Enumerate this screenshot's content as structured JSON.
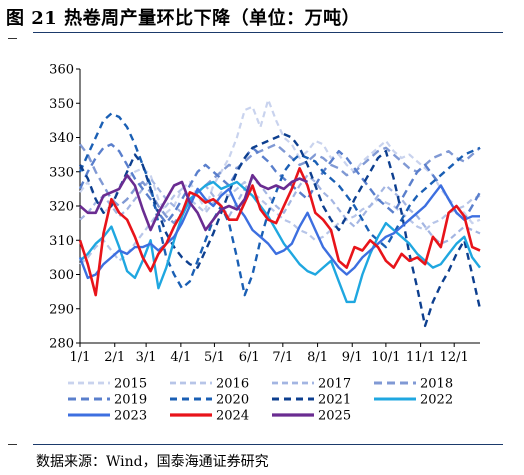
{
  "figure": {
    "title": "图 21  热卷周产量环比下降（单位：万吨）",
    "source": "数据来源：Wind，国泰海通证券研究"
  },
  "chart_data": {
    "type": "line",
    "title": "图 21  热卷周产量环比下降（单位：万吨）",
    "ylabel": "",
    "xlabel": "",
    "x_ticks": [
      "1/1",
      "2/1",
      "3/1",
      "4/1",
      "5/1",
      "6/1",
      "7/1",
      "8/1",
      "9/1",
      "10/1",
      "11/1",
      "12/1"
    ],
    "ylim": [
      280,
      360
    ],
    "y_ticks": [
      280,
      290,
      300,
      310,
      320,
      330,
      340,
      350,
      360
    ],
    "grid": false,
    "legend_position": "bottom",
    "series": [
      {
        "name": "2015",
        "color": "#c9d3ee",
        "dash": "6,4",
        "width": 2.2,
        "x": [
          1,
          2,
          3,
          4,
          5,
          6,
          7,
          8,
          9,
          10,
          11,
          12,
          13,
          14,
          15,
          16,
          17,
          18,
          19,
          20,
          21,
          22,
          23,
          24,
          25,
          26,
          27,
          28,
          29,
          30,
          31,
          32,
          33,
          34,
          35,
          36,
          37,
          38,
          39,
          40,
          41,
          42,
          43,
          44,
          45,
          46,
          47,
          48,
          49,
          50,
          51,
          52
        ],
        "values": [
          324,
          327,
          322,
          318,
          320,
          326,
          328,
          330,
          331,
          329,
          322,
          318,
          320,
          325,
          327,
          323,
          319,
          326,
          330,
          334,
          340,
          348,
          349,
          343,
          351,
          345,
          340,
          338,
          334,
          336,
          339,
          338,
          334,
          335,
          332,
          330,
          333,
          335,
          337,
          339,
          336,
          334,
          335,
          333,
          331,
          329,
          325,
          322,
          320,
          318,
          315,
          316
        ]
      },
      {
        "name": "2016",
        "color": "#b7c5e8",
        "dash": "6,4",
        "width": 2.2,
        "x": [
          1,
          2,
          3,
          4,
          5,
          6,
          7,
          8,
          9,
          10,
          11,
          12,
          13,
          14,
          15,
          16,
          17,
          18,
          19,
          20,
          21,
          22,
          23,
          24,
          25,
          26,
          27,
          28,
          29,
          30,
          31,
          32,
          33,
          34,
          35,
          36,
          37,
          38,
          39,
          40,
          41,
          42,
          43,
          44,
          45,
          46,
          47,
          48,
          49,
          50,
          51,
          52
        ],
        "values": [
          303,
          305,
          308,
          310,
          307,
          304,
          306,
          309,
          312,
          315,
          318,
          320,
          323,
          325,
          322,
          320,
          318,
          321,
          324,
          323,
          325,
          327,
          324,
          322,
          320,
          318,
          316,
          315,
          313,
          312,
          310,
          311,
          313,
          315,
          316,
          317,
          319,
          320,
          322,
          321,
          320,
          318,
          316,
          314,
          313,
          315,
          316,
          318,
          319,
          320,
          322,
          323
        ]
      },
      {
        "name": "2017",
        "color": "#a3b5e2",
        "dash": "6,4",
        "width": 2.2,
        "x": [
          1,
          2,
          3,
          4,
          5,
          6,
          7,
          8,
          9,
          10,
          11,
          12,
          13,
          14,
          15,
          16,
          17,
          18,
          19,
          20,
          21,
          22,
          23,
          24,
          25,
          26,
          27,
          28,
          29,
          30,
          31,
          32,
          33,
          34,
          35,
          36,
          37,
          38,
          39,
          40,
          41,
          42,
          43,
          44,
          45,
          46,
          47,
          48,
          49,
          50,
          51,
          52
        ],
        "values": [
          316,
          318,
          321,
          323,
          320,
          317,
          319,
          322,
          325,
          328,
          325,
          322,
          320,
          318,
          321,
          324,
          326,
          323,
          320,
          317,
          321,
          325,
          328,
          326,
          323,
          320,
          318,
          322,
          326,
          329,
          327,
          324,
          322,
          319,
          316,
          314,
          317,
          320,
          323,
          326,
          324,
          322,
          319,
          317,
          314,
          311,
          309,
          310,
          312,
          314,
          313,
          312
        ]
      },
      {
        "name": "2018",
        "color": "#8099d4",
        "dash": "8,5",
        "width": 2.4,
        "x": [
          1,
          2,
          3,
          4,
          5,
          6,
          7,
          8,
          9,
          10,
          11,
          12,
          13,
          14,
          15,
          16,
          17,
          18,
          19,
          20,
          21,
          22,
          23,
          24,
          25,
          26,
          27,
          28,
          29,
          30,
          31,
          32,
          33,
          34,
          35,
          36,
          37,
          38,
          39,
          40,
          41,
          42,
          43,
          44,
          45,
          46,
          47,
          48,
          49,
          50,
          51,
          52
        ],
        "values": [
          338,
          335,
          330,
          326,
          322,
          320,
          322,
          325,
          327,
          324,
          320,
          317,
          315,
          318,
          321,
          324,
          326,
          328,
          330,
          332,
          331,
          333,
          335,
          336,
          337,
          338,
          336,
          334,
          332,
          333,
          335,
          334,
          332,
          331,
          329,
          330,
          332,
          334,
          336,
          337,
          335,
          333,
          331,
          330,
          332,
          334,
          335,
          336,
          334,
          333,
          335,
          337
        ]
      },
      {
        "name": "2019",
        "color": "#5a7fcc",
        "dash": "8,5",
        "width": 2.4,
        "x": [
          1,
          2,
          3,
          4,
          5,
          6,
          7,
          8,
          9,
          10,
          11,
          12,
          13,
          14,
          15,
          16,
          17,
          18,
          19,
          20,
          21,
          22,
          23,
          24,
          25,
          26,
          27,
          28,
          29,
          30,
          31,
          32,
          33,
          34,
          35,
          36,
          37,
          38,
          39,
          40,
          41,
          42,
          43,
          44,
          45,
          46,
          47,
          48,
          49,
          50,
          51,
          52
        ],
        "values": [
          325,
          330,
          334,
          337,
          338,
          336,
          332,
          328,
          325,
          322,
          318,
          315,
          318,
          322,
          326,
          330,
          332,
          330,
          328,
          326,
          330,
          334,
          337,
          335,
          333,
          330,
          328,
          326,
          324,
          322,
          326,
          330,
          333,
          336,
          334,
          331,
          328,
          325,
          322,
          320,
          318,
          322,
          326,
          330,
          332,
          329,
          326,
          322,
          318,
          316,
          320,
          324
        ]
      },
      {
        "name": "2020",
        "color": "#1a5fb4",
        "dash": "7,5",
        "width": 2.4,
        "x": [
          1,
          2,
          3,
          4,
          5,
          6,
          7,
          8,
          9,
          10,
          11,
          12,
          13,
          14,
          15,
          16,
          17,
          18,
          19,
          20,
          21,
          22,
          23,
          24,
          25,
          26,
          27,
          28,
          29,
          30,
          31,
          32,
          33,
          34,
          35,
          36,
          37,
          38,
          39,
          40,
          41,
          42,
          43,
          44,
          45,
          46,
          47,
          48,
          49,
          50,
          51,
          52
        ],
        "values": [
          330,
          335,
          340,
          345,
          347,
          346,
          343,
          338,
          332,
          326,
          315,
          305,
          300,
          296,
          298,
          304,
          310,
          316,
          320,
          315,
          305,
          294,
          300,
          310,
          318,
          324,
          330,
          333,
          335,
          334,
          333,
          330,
          328,
          326,
          323,
          320,
          316,
          312,
          310,
          308,
          312,
          316,
          320,
          323,
          325,
          327,
          329,
          331,
          333,
          335,
          336,
          337
        ]
      },
      {
        "name": "2021",
        "color": "#0d3f8f",
        "dash": "7,5",
        "width": 2.4,
        "x": [
          1,
          2,
          3,
          4,
          5,
          6,
          7,
          8,
          9,
          10,
          11,
          12,
          13,
          14,
          15,
          16,
          17,
          18,
          19,
          20,
          21,
          22,
          23,
          24,
          25,
          26,
          27,
          28,
          29,
          30,
          31,
          32,
          33,
          34,
          35,
          36,
          37,
          38,
          39,
          40,
          41,
          42,
          43,
          44,
          45,
          46,
          47,
          48,
          49,
          50,
          51,
          52
        ],
        "values": [
          332,
          328,
          322,
          318,
          320,
          325,
          330,
          335,
          332,
          325,
          318,
          312,
          308,
          305,
          303,
          302,
          307,
          312,
          318,
          324,
          330,
          334,
          337,
          338,
          339,
          340,
          341,
          340,
          337,
          332,
          326,
          320,
          316,
          313,
          317,
          322,
          326,
          330,
          334,
          336,
          328,
          318,
          306,
          296,
          285,
          292,
          297,
          301,
          306,
          310,
          300,
          290
        ]
      },
      {
        "name": "2022",
        "color": "#1fa7e0",
        "dash": "",
        "width": 2.4,
        "x": [
          1,
          2,
          3,
          4,
          5,
          6,
          7,
          8,
          9,
          10,
          11,
          12,
          13,
          14,
          15,
          16,
          17,
          18,
          19,
          20,
          21,
          22,
          23,
          24,
          25,
          26,
          27,
          28,
          29,
          30,
          31,
          32,
          33,
          34,
          35,
          36,
          37,
          38,
          39,
          40,
          41,
          42,
          43,
          44,
          45,
          46,
          47,
          48,
          49,
          50,
          51,
          52
        ],
        "values": [
          304,
          306,
          309,
          311,
          314,
          308,
          301,
          299,
          304,
          310,
          296,
          302,
          310,
          317,
          322,
          324,
          326,
          327,
          325,
          326,
          327,
          325,
          323,
          320,
          317,
          313,
          309,
          306,
          303,
          301,
          300,
          302,
          304,
          298,
          292,
          292,
          300,
          306,
          311,
          315,
          313,
          311,
          309,
          306,
          304,
          302,
          303,
          306,
          309,
          311,
          305,
          302
        ]
      },
      {
        "name": "2023",
        "color": "#3d6fe0",
        "dash": "",
        "width": 2.4,
        "x": [
          1,
          2,
          3,
          4,
          5,
          6,
          7,
          8,
          9,
          10,
          11,
          12,
          13,
          14,
          15,
          16,
          17,
          18,
          19,
          20,
          21,
          22,
          23,
          24,
          25,
          26,
          27,
          28,
          29,
          30,
          31,
          32,
          33,
          34,
          35,
          36,
          37,
          38,
          39,
          40,
          41,
          42,
          43,
          44,
          45,
          46,
          47,
          48,
          49,
          50,
          51,
          52
        ],
        "values": [
          305,
          299,
          300,
          303,
          305,
          307,
          306,
          308,
          308,
          309,
          307,
          309,
          311,
          315,
          320,
          325,
          322,
          320,
          323,
          325,
          320,
          317,
          313,
          311,
          309,
          306,
          307,
          309,
          314,
          318,
          313,
          308,
          305,
          302,
          300,
          302,
          305,
          307,
          309,
          311,
          312,
          314,
          316,
          318,
          320,
          323,
          326,
          322,
          318,
          316,
          317,
          317
        ]
      },
      {
        "name": "2024",
        "color": "#e8141a",
        "dash": "",
        "width": 2.6,
        "x": [
          1,
          2,
          3,
          4,
          5,
          6,
          7,
          8,
          9,
          10,
          11,
          12,
          13,
          14,
          15,
          16,
          17,
          18,
          19,
          20,
          21,
          22,
          23,
          24,
          25,
          26,
          27,
          28,
          29,
          30,
          31,
          32,
          33,
          34,
          35,
          36,
          37,
          38,
          39,
          40,
          41,
          42,
          43,
          44,
          45,
          46,
          47,
          48,
          49,
          50,
          51,
          52
        ],
        "values": [
          310,
          303,
          294,
          312,
          322,
          318,
          316,
          311,
          305,
          301,
          306,
          309,
          314,
          318,
          324,
          323,
          321,
          322,
          320,
          316,
          316,
          321,
          326,
          319,
          316,
          315,
          320,
          325,
          331,
          326,
          318,
          316,
          313,
          304,
          302,
          308,
          307,
          310,
          308,
          304,
          302,
          306,
          304,
          305,
          303,
          311,
          308,
          318,
          320,
          317,
          308,
          307
        ]
      },
      {
        "name": "2025",
        "color": "#6a2c91",
        "dash": "",
        "width": 2.6,
        "x": [
          1,
          2,
          3,
          4,
          5,
          6,
          7,
          8,
          9,
          10,
          11,
          12,
          13,
          14,
          15,
          16,
          17,
          18,
          19,
          20,
          21,
          22,
          23,
          24,
          25,
          26,
          27,
          28,
          29,
          30
        ],
        "values": [
          320,
          318,
          318,
          323,
          324,
          325,
          329,
          326,
          319,
          313,
          318,
          322,
          326,
          327,
          321,
          318,
          313,
          316,
          319,
          320,
          319,
          322,
          329,
          326,
          325,
          326,
          325,
          327,
          328,
          327
        ]
      }
    ]
  }
}
